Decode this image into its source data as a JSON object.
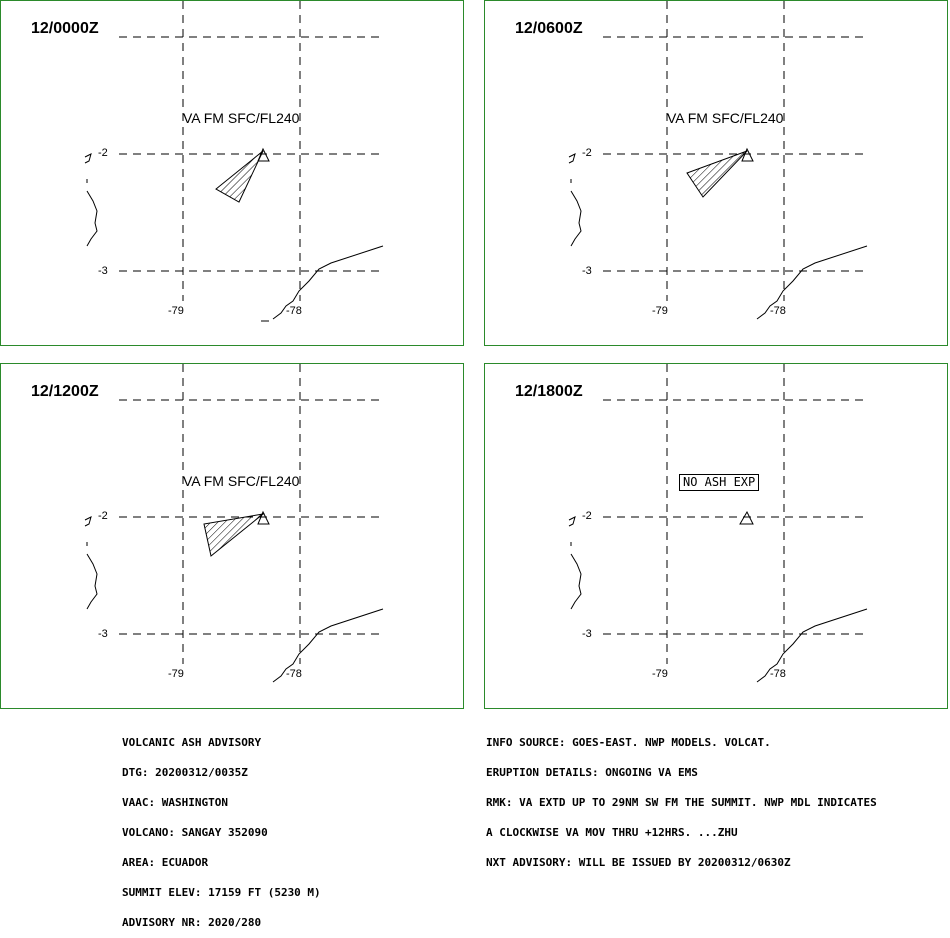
{
  "panels": [
    {
      "time": "12/0000Z",
      "label": "VA FM SFC/FL240",
      "ash": true
    },
    {
      "time": "12/0600Z",
      "label": "VA FM SFC/FL240",
      "ash": true
    },
    {
      "time": "12/1200Z",
      "label": "VA FM SFC/FL240",
      "ash": true
    },
    {
      "time": "12/1800Z",
      "label": "NO ASH EXP",
      "ash": false
    }
  ],
  "axes": {
    "lat_labels": [
      "-2",
      "-3"
    ],
    "lon_labels": [
      "-79",
      "-78"
    ]
  },
  "advisory_left": [
    "VOLCANIC ASH ADVISORY",
    "DTG: 20200312/0035Z",
    "VAAC: WASHINGTON",
    "VOLCANO: SANGAY 352090",
    "AREA: ECUADOR",
    "SUMMIT ELEV: 17159 FT (5230 M)",
    "ADVISORY NR: 2020/280"
  ],
  "advisory_right": [
    "INFO SOURCE: GOES-EAST. NWP MODELS. VOLCAT.",
    "ERUPTION DETAILS: ONGOING VA EMS",
    "RMK: VA EXTD UP TO 29NM SW FM THE SUMMIT. NWP MDL INDICATES",
    "A CLOCKWISE VA MOV THRU +12HRS. ...ZHU",
    "NXT ADVISORY: WILL BE ISSUED BY 20200312/0630Z"
  ],
  "colors": {
    "frame": "#2b8a2b",
    "lines": "#000000"
  }
}
